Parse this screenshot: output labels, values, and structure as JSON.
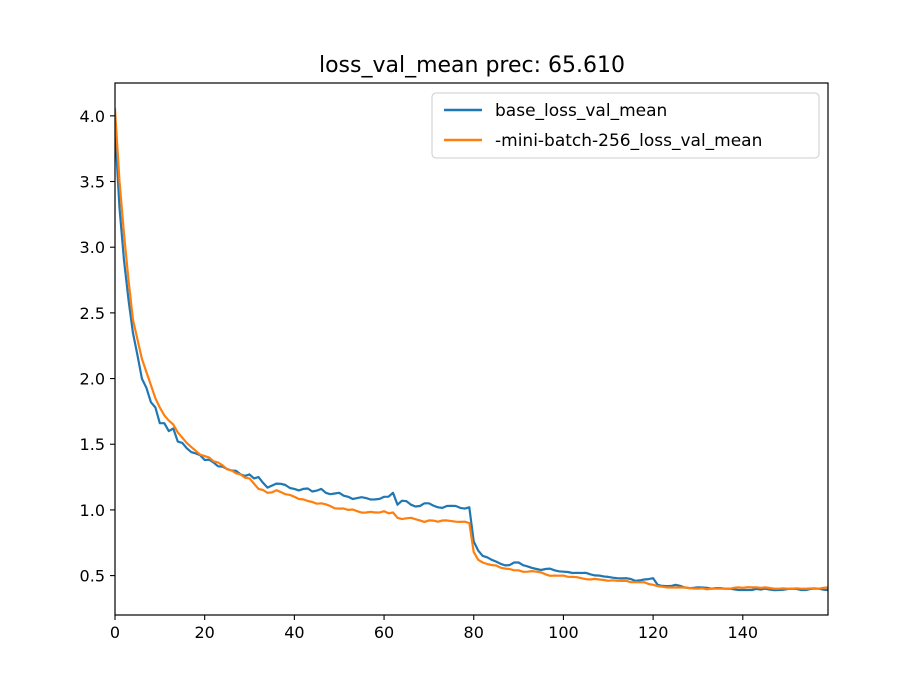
{
  "chart_data": {
    "type": "line",
    "title": "loss_val_mean prec: 65.610",
    "xlabel": "",
    "ylabel": "",
    "xlim": [
      0,
      159
    ],
    "ylim": [
      0.2,
      4.25
    ],
    "x_ticks": [
      0,
      20,
      40,
      60,
      80,
      100,
      120,
      140
    ],
    "y_ticks": [
      0.5,
      1.0,
      1.5,
      2.0,
      2.5,
      3.0,
      3.5,
      4.0
    ],
    "x_tick_labels": [
      "0",
      "20",
      "40",
      "60",
      "80",
      "100",
      "120",
      "140"
    ],
    "y_tick_labels": [
      "0.5",
      "1.0",
      "1.5",
      "2.0",
      "2.5",
      "3.0",
      "3.5",
      "4.0"
    ],
    "grid": false,
    "legend_position": "upper right",
    "series": [
      {
        "name": "base_loss_val_mean",
        "color": "#1f77b4",
        "keypoints": [
          [
            0,
            3.9
          ],
          [
            1,
            3.3
          ],
          [
            2,
            2.9
          ],
          [
            3,
            2.6
          ],
          [
            4,
            2.35
          ],
          [
            5,
            2.18
          ],
          [
            6,
            2.0
          ],
          [
            7,
            1.93
          ],
          [
            8,
            1.82
          ],
          [
            9,
            1.78
          ],
          [
            10,
            1.66
          ],
          [
            11,
            1.66
          ],
          [
            12,
            1.6
          ],
          [
            13,
            1.62
          ],
          [
            14,
            1.52
          ],
          [
            15,
            1.51
          ],
          [
            16,
            1.47
          ],
          [
            17,
            1.44
          ],
          [
            18,
            1.43
          ],
          [
            20,
            1.38
          ],
          [
            22,
            1.36
          ],
          [
            24,
            1.33
          ],
          [
            26,
            1.3
          ],
          [
            28,
            1.27
          ],
          [
            30,
            1.27
          ],
          [
            31,
            1.24
          ],
          [
            32,
            1.25
          ],
          [
            34,
            1.17
          ],
          [
            36,
            1.2
          ],
          [
            38,
            1.19
          ],
          [
            40,
            1.16
          ],
          [
            42,
            1.16
          ],
          [
            44,
            1.14
          ],
          [
            46,
            1.16
          ],
          [
            48,
            1.12
          ],
          [
            50,
            1.13
          ],
          [
            52,
            1.1
          ],
          [
            54,
            1.09
          ],
          [
            56,
            1.09
          ],
          [
            58,
            1.08
          ],
          [
            60,
            1.1
          ],
          [
            62,
            1.13
          ],
          [
            63,
            1.04
          ],
          [
            64,
            1.07
          ],
          [
            66,
            1.04
          ],
          [
            68,
            1.03
          ],
          [
            70,
            1.05
          ],
          [
            72,
            1.02
          ],
          [
            74,
            1.03
          ],
          [
            76,
            1.03
          ],
          [
            78,
            1.01
          ],
          [
            79,
            1.02
          ],
          [
            80,
            0.76
          ],
          [
            81,
            0.69
          ],
          [
            82,
            0.65
          ],
          [
            84,
            0.62
          ],
          [
            86,
            0.59
          ],
          [
            88,
            0.58
          ],
          [
            89,
            0.6
          ],
          [
            90,
            0.6
          ],
          [
            92,
            0.57
          ],
          [
            94,
            0.55
          ],
          [
            96,
            0.55
          ],
          [
            98,
            0.54
          ],
          [
            100,
            0.53
          ],
          [
            102,
            0.52
          ],
          [
            104,
            0.52
          ],
          [
            106,
            0.51
          ],
          [
            108,
            0.5
          ],
          [
            110,
            0.49
          ],
          [
            112,
            0.48
          ],
          [
            114,
            0.48
          ],
          [
            116,
            0.46
          ],
          [
            118,
            0.47
          ],
          [
            120,
            0.48
          ],
          [
            121,
            0.43
          ],
          [
            123,
            0.42
          ],
          [
            125,
            0.43
          ],
          [
            127,
            0.41
          ],
          [
            130,
            0.41
          ],
          [
            133,
            0.4
          ],
          [
            136,
            0.4
          ],
          [
            139,
            0.39
          ],
          [
            142,
            0.39
          ],
          [
            145,
            0.4
          ],
          [
            148,
            0.39
          ],
          [
            151,
            0.4
          ],
          [
            154,
            0.39
          ],
          [
            157,
            0.4
          ],
          [
            159,
            0.39
          ]
        ]
      },
      {
        "name": "-mini-batch-256_loss_val_mean",
        "color": "#ff7f0e",
        "keypoints": [
          [
            0,
            4.05
          ],
          [
            1,
            3.5
          ],
          [
            2,
            3.1
          ],
          [
            3,
            2.75
          ],
          [
            4,
            2.45
          ],
          [
            5,
            2.3
          ],
          [
            6,
            2.15
          ],
          [
            7,
            2.05
          ],
          [
            8,
            1.95
          ],
          [
            9,
            1.85
          ],
          [
            10,
            1.78
          ],
          [
            11,
            1.72
          ],
          [
            12,
            1.68
          ],
          [
            13,
            1.65
          ],
          [
            14,
            1.59
          ],
          [
            15,
            1.55
          ],
          [
            16,
            1.51
          ],
          [
            17,
            1.48
          ],
          [
            18,
            1.45
          ],
          [
            20,
            1.41
          ],
          [
            22,
            1.37
          ],
          [
            24,
            1.34
          ],
          [
            26,
            1.3
          ],
          [
            28,
            1.27
          ],
          [
            30,
            1.24
          ],
          [
            31,
            1.2
          ],
          [
            32,
            1.16
          ],
          [
            34,
            1.13
          ],
          [
            36,
            1.15
          ],
          [
            38,
            1.12
          ],
          [
            40,
            1.1
          ],
          [
            42,
            1.08
          ],
          [
            44,
            1.06
          ],
          [
            46,
            1.05
          ],
          [
            48,
            1.03
          ],
          [
            50,
            1.01
          ],
          [
            52,
            1.0
          ],
          [
            54,
            0.99
          ],
          [
            56,
            0.98
          ],
          [
            58,
            0.98
          ],
          [
            60,
            0.99
          ],
          [
            62,
            0.98
          ],
          [
            63,
            0.94
          ],
          [
            64,
            0.93
          ],
          [
            66,
            0.94
          ],
          [
            68,
            0.92
          ],
          [
            70,
            0.92
          ],
          [
            72,
            0.91
          ],
          [
            74,
            0.92
          ],
          [
            76,
            0.91
          ],
          [
            78,
            0.91
          ],
          [
            79,
            0.9
          ],
          [
            80,
            0.68
          ],
          [
            81,
            0.62
          ],
          [
            82,
            0.6
          ],
          [
            84,
            0.58
          ],
          [
            86,
            0.56
          ],
          [
            88,
            0.55
          ],
          [
            89,
            0.54
          ],
          [
            90,
            0.54
          ],
          [
            92,
            0.53
          ],
          [
            94,
            0.53
          ],
          [
            96,
            0.51
          ],
          [
            98,
            0.5
          ],
          [
            100,
            0.5
          ],
          [
            102,
            0.49
          ],
          [
            104,
            0.48
          ],
          [
            106,
            0.47
          ],
          [
            108,
            0.47
          ],
          [
            110,
            0.46
          ],
          [
            112,
            0.46
          ],
          [
            114,
            0.46
          ],
          [
            116,
            0.45
          ],
          [
            118,
            0.45
          ],
          [
            120,
            0.43
          ],
          [
            121,
            0.42
          ],
          [
            123,
            0.41
          ],
          [
            125,
            0.41
          ],
          [
            127,
            0.41
          ],
          [
            130,
            0.4
          ],
          [
            133,
            0.4
          ],
          [
            136,
            0.4
          ],
          [
            139,
            0.41
          ],
          [
            142,
            0.41
          ],
          [
            145,
            0.41
          ],
          [
            148,
            0.4
          ],
          [
            151,
            0.4
          ],
          [
            154,
            0.4
          ],
          [
            157,
            0.4
          ],
          [
            159,
            0.41
          ]
        ]
      }
    ]
  }
}
